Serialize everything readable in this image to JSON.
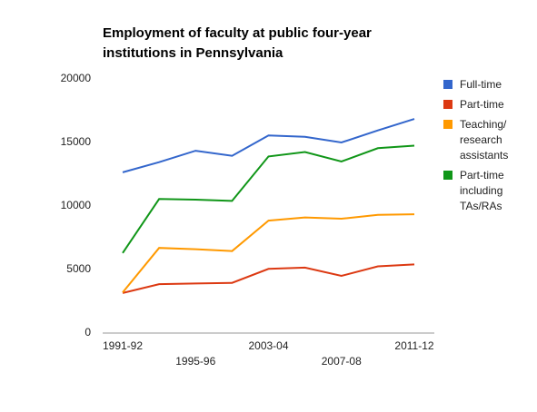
{
  "chart_data": {
    "type": "line",
    "title": "Employment of faculty at public four-year institutions in Pennsylvania",
    "categories": [
      "1991-92",
      null,
      "1995-96",
      null,
      "2003-04",
      null,
      "2007-08",
      null,
      "2011-12"
    ],
    "series": [
      {
        "name": "Full-time",
        "color": "#3366cc",
        "values": [
          12650,
          13450,
          14350,
          13950,
          15550,
          15450,
          15000,
          15950,
          16850
        ]
      },
      {
        "name": "Part-time",
        "color": "#dc3912",
        "values": [
          3150,
          3850,
          3900,
          3950,
          5050,
          5150,
          4500,
          5250,
          5400
        ]
      },
      {
        "name": "Teaching/ research assistants",
        "color": "#ff9900",
        "values": [
          3200,
          6700,
          6600,
          6450,
          8850,
          9100,
          9000,
          9300,
          9350
        ]
      },
      {
        "name": "Part-time including TAs/RAs",
        "color": "#109618",
        "values": [
          6300,
          10550,
          10500,
          10400,
          13900,
          14250,
          13500,
          14550,
          14750
        ]
      }
    ],
    "ylim": [
      0,
      20000
    ],
    "yticks": [
      0,
      5000,
      10000,
      15000,
      20000
    ],
    "grid": false,
    "legend": "right"
  }
}
